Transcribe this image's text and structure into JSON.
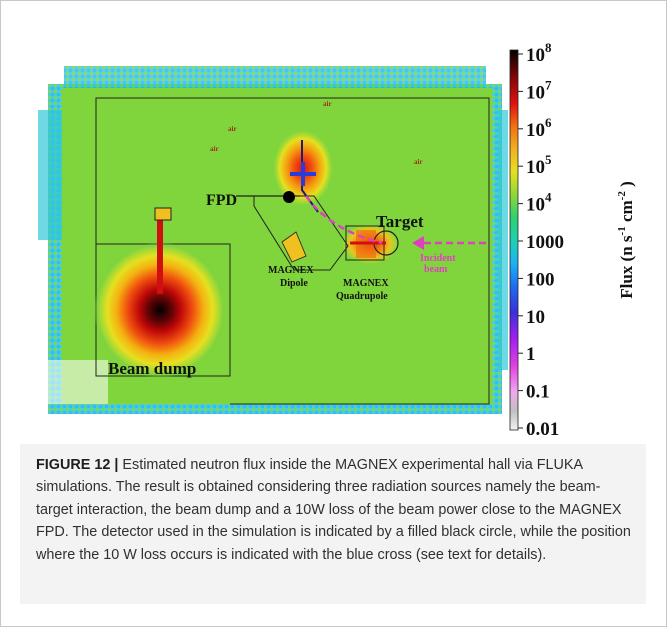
{
  "figure": {
    "labels": {
      "air": [
        "air",
        "air",
        "air",
        "air"
      ],
      "fpd": "FPD",
      "target": "Target",
      "dipole": [
        "MAGNEX",
        "Dipole"
      ],
      "quadrupole": [
        "MAGNEX",
        "Quadrupole"
      ],
      "incident_beam": [
        "Incident",
        "beam"
      ],
      "beam_dump": "Beam dump"
    },
    "colorbar": {
      "title": "Flux (n s",
      "title_sup1": "-1",
      "title_mid": " cm",
      "title_sup2": "-2",
      "title_end": " )",
      "ticks": [
        {
          "base": "10",
          "exp": "8"
        },
        {
          "base": "10",
          "exp": "7"
        },
        {
          "base": "10",
          "exp": "6"
        },
        {
          "base": "10",
          "exp": "5"
        },
        {
          "base": "10",
          "exp": "4"
        },
        {
          "base": "1000",
          "exp": ""
        },
        {
          "base": "100",
          "exp": ""
        },
        {
          "base": "10",
          "exp": ""
        },
        {
          "base": "1",
          "exp": ""
        },
        {
          "base": "0.1",
          "exp": ""
        },
        {
          "base": "0.01",
          "exp": ""
        }
      ],
      "colors": [
        "#f2f2f2",
        "#d9d9d9",
        "#b0b0b0",
        "#f0a8f0",
        "#e040e0",
        "#a020f0",
        "#5a2fd0",
        "#2a3cd8",
        "#1e6ef0",
        "#1eb4f0",
        "#20d0b0",
        "#30d070",
        "#70d040",
        "#b0e030",
        "#e6e020",
        "#f0c020",
        "#f59010",
        "#f05010",
        "#e01010",
        "#a00808",
        "#600404",
        "#000000"
      ]
    },
    "colors": {
      "beam_arrow": "#e040c0",
      "blue_cross": "#2a3cd8"
    }
  },
  "caption": {
    "label": "FIGURE 12 |",
    "text": " Estimated neutron flux inside the MAGNEX experimental hall via FLUKA simulations. The result is obtained considering three radiation sources namely the beam-target interaction, the beam dump and a 10W loss of the beam power close to the MAGNEX FPD. The detector used in the simulation is indicated by a filled black circle, while the position where the 10 W loss occurs is indicated with the blue cross (see text for details)."
  }
}
